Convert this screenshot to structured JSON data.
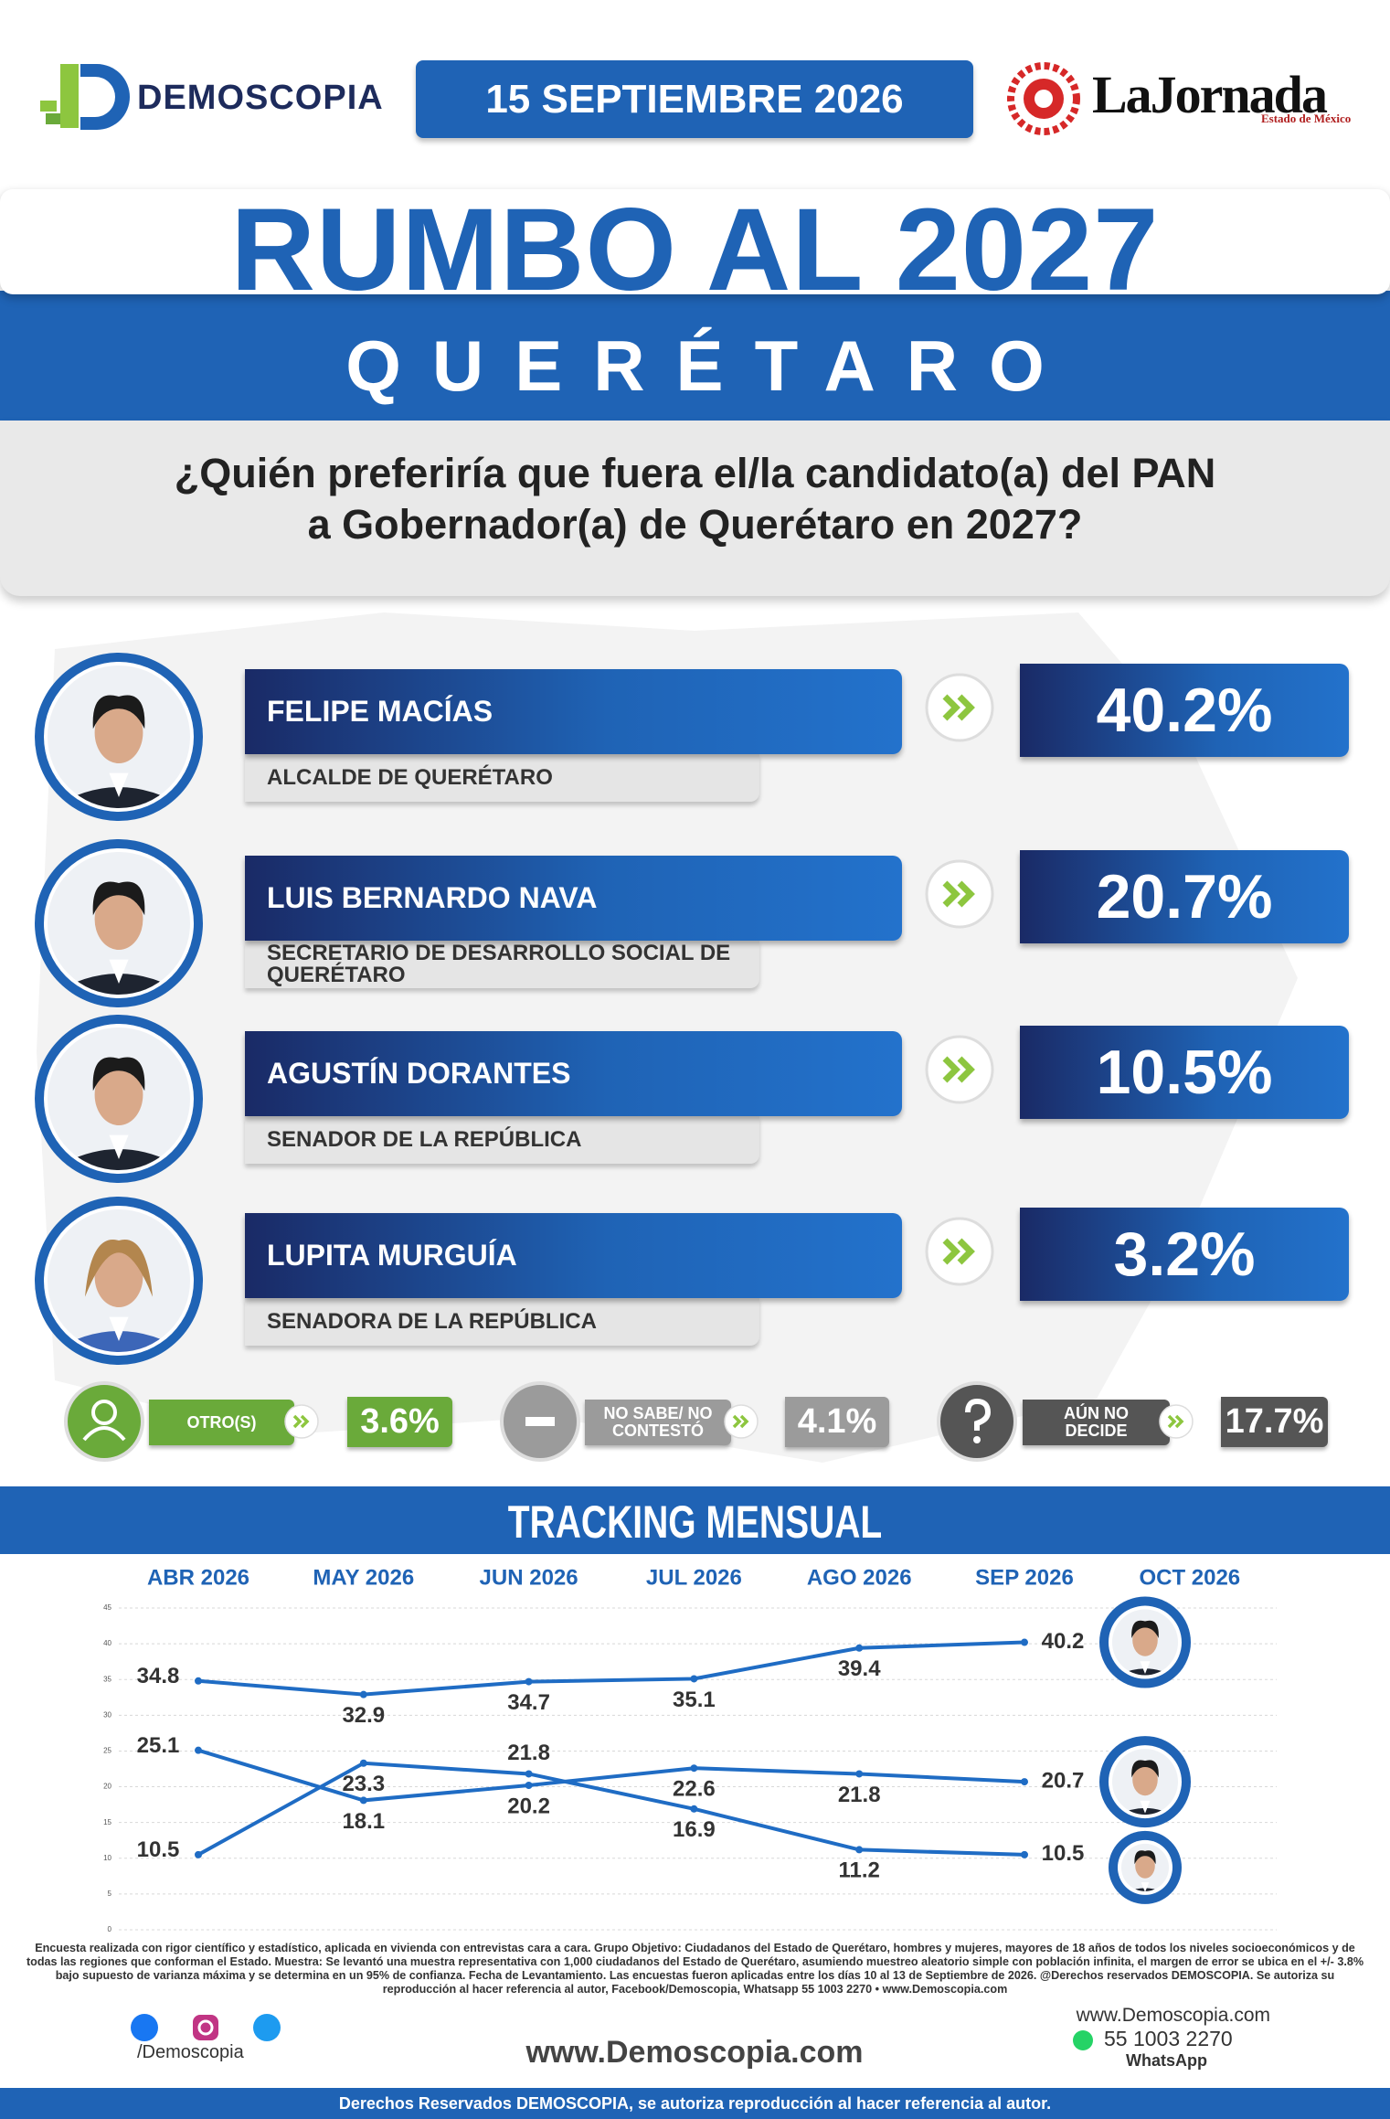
{
  "header": {
    "brand": "DEMOSCOPIA",
    "date": "15 SEPTIEMBRE 2026",
    "partner": "LaJornada",
    "partner_region": "Estado de México"
  },
  "title": "RUMBO AL 2027",
  "state": "QUERÉTARO",
  "question": [
    "¿Quién preferiría que fuera el/la candidato(a) del PAN",
    "a Gobernador(a) de Querétaro en 2027?"
  ],
  "candidates": [
    {
      "name": "FELIPE MACÍAS",
      "role": "ALCALDE DE QUERÉTARO",
      "result": "40.2%"
    },
    {
      "name": "LUIS BERNARDO NAVA",
      "role": "SECRETARIO DE DESARROLLO SOCIAL DE QUERÉTARO",
      "result": "20.7%"
    },
    {
      "name": "AGUSTÍN DORANTES",
      "role": "SENADOR DE LA REPÚBLICA",
      "result": "10.5%"
    },
    {
      "name": "LUPITA MURGUÍA",
      "role": "SENADORA DE LA REPÚBLICA",
      "result": "3.2%"
    }
  ],
  "others": [
    {
      "label": "OTRO(S)",
      "result": "3.6%"
    },
    {
      "label": "NO SABE/ NO CONTESTÓ",
      "result": "4.1%"
    },
    {
      "label": "AÚN NO DECIDE",
      "result": "17.7%"
    }
  ],
  "tracking_title": "TRACKING MENSUAL",
  "chart_data": {
    "type": "line",
    "categories": [
      "ABR 2026",
      "MAY 2026",
      "JUN 2026",
      "JUL 2026",
      "AGO 2026",
      "SEP 2026",
      "OCT 2026"
    ],
    "color": "#1f6cc4",
    "series": [
      {
        "values": [
          34.8,
          32.9,
          34.7,
          35.1,
          39.4,
          40.2,
          null
        ]
      },
      {
        "values": [
          25.1,
          18.1,
          20.2,
          22.6,
          21.8,
          20.7,
          null
        ]
      },
      {
        "values": [
          10.5,
          23.3,
          21.8,
          16.9,
          11.2,
          10.5,
          null
        ]
      }
    ],
    "ylim": [
      0,
      45
    ],
    "yticks": [
      0,
      5,
      10,
      15,
      20,
      25,
      30,
      35,
      40,
      45
    ],
    "grid": true
  },
  "methodology": "Encuesta realizada con rigor científico y estadístico, aplicada en vivienda con entrevistas cara a cara. Grupo Objetivo: Ciudadanos del Estado de Querétaro, hombres y mujeres, mayores de 18 años de todos los niveles socioeconómicos y de todas las regiones que conforman el Estado. Muestra: Se levantó una muestra representativa con 1,000 ciudadanos del Estado de Querétaro, asumiendo muestreo aleatorio simple con población infinita, el margen de error se ubica en el +/- 3.8% bajo supuesto de varianza máxima y se determina en un 95% de confianza. Fecha de Levantamiento. Las encuestas fueron aplicadas entre los días 10 al 13 de Septiembre de 2026. @Derechos reservados DEMOSCOPIA. Se autoriza su reproducción al hacer referencia al autor, Facebook/Demoscopia, Whatsapp 55 1003 2270 • www.Demoscopia.com",
  "footer": {
    "social": "/Demoscopia",
    "website": "www.Demoscopia.com",
    "contact_website": "www.Demoscopia.com",
    "phone": "55 1003 2270",
    "phone_label": "WhatsApp",
    "rights": "Derechos Reservados DEMOSCOPIA, se autoriza reproducción al hacer referencia al autor."
  }
}
